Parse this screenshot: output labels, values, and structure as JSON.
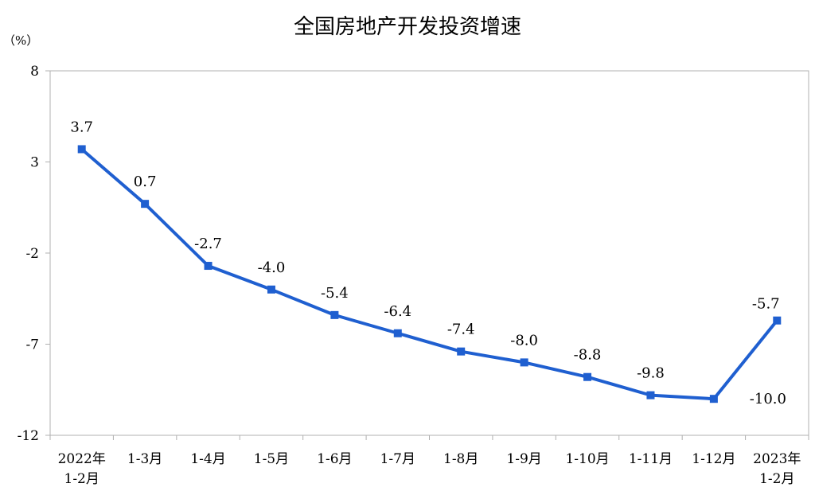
{
  "chart_data": {
    "type": "line",
    "title": "全国房地产开发投资增速",
    "unit": "（%）",
    "ylim": [
      -12,
      8
    ],
    "yticks": [
      8,
      3,
      -2,
      -7,
      -12
    ],
    "grid": false,
    "categories": [
      [
        "2022年",
        "1-2月"
      ],
      [
        "1-3月"
      ],
      [
        "1-4月"
      ],
      [
        "1-5月"
      ],
      [
        "1-6月"
      ],
      [
        "1-7月"
      ],
      [
        "1-8月"
      ],
      [
        "1-9月"
      ],
      [
        "1-10月"
      ],
      [
        "1-11月"
      ],
      [
        "1-12月"
      ],
      [
        "2023年",
        "1-2月"
      ]
    ],
    "series": [
      {
        "values": [
          3.7,
          0.7,
          -2.7,
          -4.0,
          -5.4,
          -6.4,
          -7.4,
          -8.0,
          -8.8,
          -9.8,
          -10.0,
          -5.7
        ],
        "data_labels": [
          "3.7",
          "0.7",
          "-2.7",
          "-4.0",
          "-5.4",
          "-6.4",
          "-7.4",
          "-8.0",
          "-8.8",
          "-9.8",
          "-10.0",
          "-5.7"
        ],
        "color": "#1f5fd0"
      }
    ],
    "axis_color": "#b0b0b0"
  }
}
